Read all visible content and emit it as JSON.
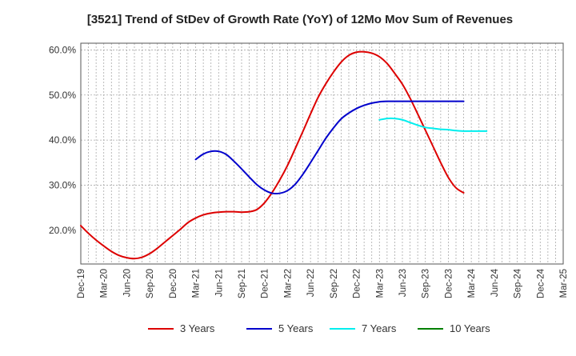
{
  "chart_data": {
    "type": "line",
    "title": "[3521]  Trend of StDev of Growth Rate (YoY) of 12Mo Mov Sum of Revenues",
    "xlabel": "",
    "ylabel": "",
    "ylim": [
      12.5,
      61.5
    ],
    "y_ticks": [
      20,
      30,
      40,
      50,
      60
    ],
    "y_tick_labels": [
      "20.0%",
      "30.0%",
      "40.0%",
      "50.0%",
      "60.0%"
    ],
    "x_tick_labels": [
      "Dec-19",
      "Mar-20",
      "Jun-20",
      "Sep-20",
      "Dec-20",
      "Mar-21",
      "Jun-21",
      "Sep-21",
      "Dec-21",
      "Mar-22",
      "Jun-22",
      "Sep-22",
      "Dec-22",
      "Mar-23",
      "Jun-23",
      "Sep-23",
      "Dec-23",
      "Mar-24",
      "Jun-24",
      "Sep-24",
      "Dec-24",
      "Mar-25"
    ],
    "grid": true,
    "legend_position": "bottom",
    "series": [
      {
        "name": "3 Years",
        "color": "#dd0000",
        "start_index": 0,
        "values": [
          21.0,
          19.3,
          17.8,
          16.5,
          15.3,
          14.4,
          13.9,
          13.7,
          14.0,
          14.8,
          16.0,
          17.4,
          18.8,
          20.2,
          21.7,
          22.7,
          23.4,
          23.8,
          24.0,
          24.1,
          24.1,
          24.0,
          24.1,
          24.6,
          26.1,
          28.4,
          31.2,
          34.4,
          38.1,
          41.9,
          45.8,
          49.5,
          52.5,
          55.1,
          57.3,
          58.8,
          59.5,
          59.6,
          59.3,
          58.5,
          57.0,
          54.8,
          52.4,
          49.3,
          45.8,
          42.2,
          38.6,
          35.0,
          31.7,
          29.4,
          28.3
        ]
      },
      {
        "name": "5 Years",
        "color": "#0000cc",
        "start_index": 15,
        "values": [
          35.7,
          36.9,
          37.5,
          37.5,
          36.8,
          35.3,
          33.6,
          31.8,
          30.1,
          28.9,
          28.2,
          28.2,
          28.8,
          30.2,
          32.4,
          35.0,
          37.7,
          40.4,
          42.7,
          44.7,
          46.0,
          47.0,
          47.7,
          48.2,
          48.5,
          48.6,
          48.6,
          48.6,
          48.6,
          48.6,
          48.6,
          48.6,
          48.6,
          48.6,
          48.6,
          48.6
        ]
      },
      {
        "name": "7 Years",
        "color": "#00eeee",
        "start_index": 39,
        "values": [
          44.5,
          44.8,
          44.8,
          44.5,
          43.9,
          43.3,
          42.8,
          42.6,
          42.4,
          42.3,
          42.1,
          42.0,
          42.0,
          42.0,
          42.0
        ]
      },
      {
        "name": "10 Years",
        "color": "#008000",
        "start_index": 0,
        "values": []
      }
    ]
  }
}
